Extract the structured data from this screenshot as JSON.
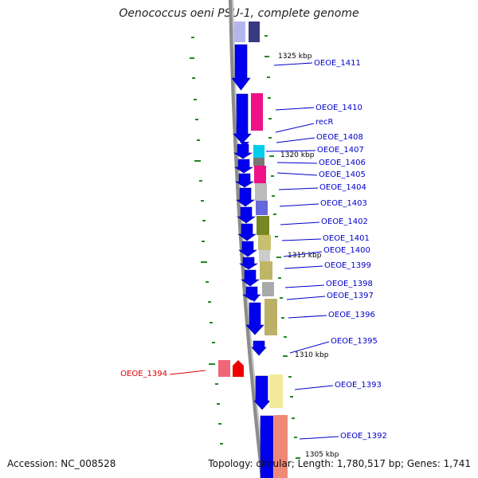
{
  "title": "Oenococcus oeni PSU-1, complete genome",
  "footer": {
    "accession": "Accession: NC_008528",
    "summary": "Topology: circular; Length: 1,780,517 bp; Genes: 1,741"
  },
  "colors": {
    "backbone": "#888888",
    "cds_arrow": "#0000ee",
    "leader_blue": "#0000cc",
    "leader_red": "#dd0000",
    "tick_green": "#228822"
  },
  "kbp_markers": [
    "1325 kbp",
    "1320 kbp",
    "1315 kbp",
    "1310 kbp",
    "1305 kbp"
  ],
  "gene_labels": [
    {
      "name": "OEOE_1411",
      "color": "blue"
    },
    {
      "name": "OEOE_1410",
      "color": "blue"
    },
    {
      "name": "recR",
      "color": "blue"
    },
    {
      "name": "OEOE_1408",
      "color": "blue"
    },
    {
      "name": "OEOE_1407",
      "color": "blue"
    },
    {
      "name": "OEOE_1406",
      "color": "blue"
    },
    {
      "name": "OEOE_1405",
      "color": "blue"
    },
    {
      "name": "OEOE_1404",
      "color": "blue"
    },
    {
      "name": "OEOE_1403",
      "color": "blue"
    },
    {
      "name": "OEOE_1402",
      "color": "blue"
    },
    {
      "name": "OEOE_1401",
      "color": "blue"
    },
    {
      "name": "OEOE_1400",
      "color": "blue"
    },
    {
      "name": "OEOE_1399",
      "color": "blue"
    },
    {
      "name": "OEOE_1398",
      "color": "blue"
    },
    {
      "name": "OEOE_1397",
      "color": "blue"
    },
    {
      "name": "OEOE_1396",
      "color": "blue"
    },
    {
      "name": "OEOE_1395",
      "color": "blue"
    },
    {
      "name": "OEOE_1394",
      "color": "red"
    },
    {
      "name": "OEOE_1393",
      "color": "blue"
    },
    {
      "name": "OEOE_1392",
      "color": "blue"
    }
  ]
}
